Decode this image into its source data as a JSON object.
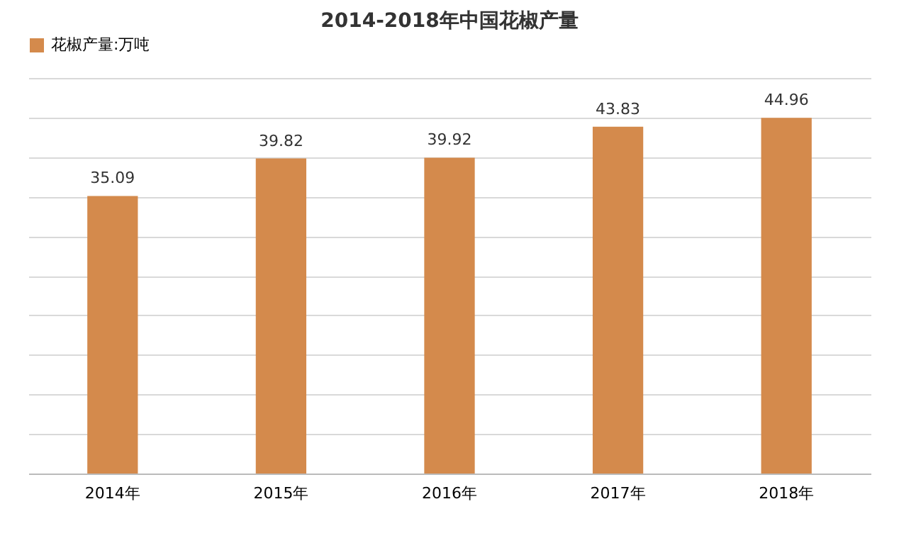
{
  "chart_data": {
    "type": "bar",
    "title": "2014-2018年中国花椒产量",
    "categories": [
      "2014年",
      "2015年",
      "2016年",
      "2017年",
      "2018年"
    ],
    "series": [
      {
        "name": "花椒产量:万吨",
        "color": "#d48a4c",
        "values": [
          35.09,
          39.82,
          39.92,
          43.83,
          44.96
        ]
      }
    ],
    "ylim": [
      0,
      50
    ],
    "yticks": [
      {
        "value": 0,
        "label": null
      },
      {
        "value": 5,
        "label": null
      },
      {
        "value": 10,
        "label": null
      },
      {
        "value": 15,
        "label": null
      },
      {
        "value": 20,
        "label": null
      },
      {
        "value": 25,
        "label": null
      },
      {
        "value": 30,
        "label": null
      },
      {
        "value": 35,
        "label": null
      },
      {
        "value": 40,
        "label": null
      },
      {
        "value": 45,
        "label": null
      },
      {
        "value": 50,
        "label": null
      }
    ],
    "grid": "y",
    "legend": "top",
    "tick_labels": "x",
    "data_labels": true
  }
}
